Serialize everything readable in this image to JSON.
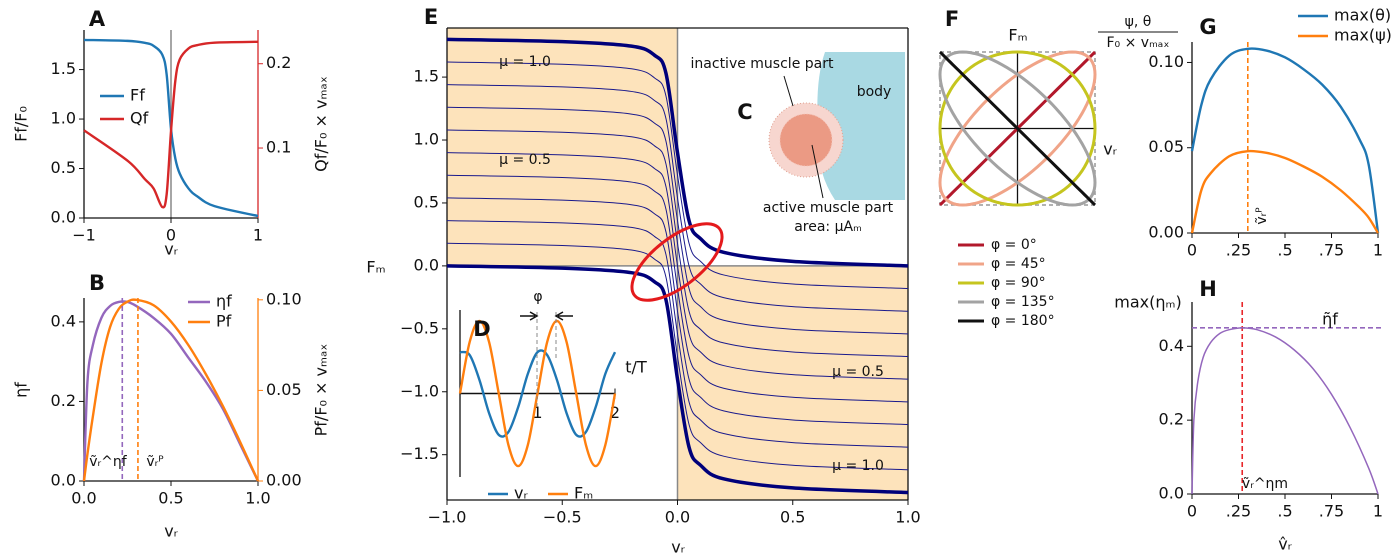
{
  "chart_data": [
    {
      "type": "line",
      "panel": "A",
      "x": [
        -1,
        -0.5,
        -0.3,
        -0.2,
        -0.1,
        -0.05,
        0,
        0.05,
        0.1,
        0.2,
        0.3,
        0.5,
        1
      ],
      "xlim": [
        -1,
        1
      ],
      "xticks": [
        {
          "value": -1,
          "label": "−1"
        },
        0,
        1
      ],
      "ylim": [
        0,
        1.9
      ],
      "yticks": [
        {
          "value": 0,
          "label": "0.0"
        },
        {
          "value": 0.5,
          "label": "0.5"
        },
        {
          "value": 1,
          "label": "1.0"
        },
        {
          "value": 1.5,
          "label": "1.5"
        }
      ],
      "y2lim": [
        0.017,
        0.24
      ],
      "y2ticks": [
        0.1,
        0.2
      ],
      "y2color": "#d62728",
      "xlabel": "vᵣ",
      "ylabel": "Ff/F₀",
      "y2label": "Qf/F₀ × vₘₐₓ",
      "zerolines": [
        "x"
      ],
      "series": [
        {
          "name": "Ff",
          "color": "#1f77b4",
          "values": [
            1.8,
            1.79,
            1.77,
            1.74,
            1.65,
            1.45,
            0.9,
            0.6,
            0.45,
            0.3,
            0.22,
            0.12,
            0.02
          ]
        },
        {
          "name": "Qf",
          "color": "#d62728",
          "axis": "y2",
          "values": [
            0.121,
            0.085,
            0.063,
            0.052,
            0.03,
            0.045,
            0.12,
            0.18,
            0.205,
            0.218,
            0.222,
            0.225,
            0.226
          ]
        }
      ]
    },
    {
      "type": "line",
      "panel": "B",
      "x": [
        0,
        0.02,
        0.05,
        0.1,
        0.15,
        0.2,
        0.25,
        0.3,
        0.4,
        0.5,
        0.6,
        0.7,
        0.8,
        0.9,
        1
      ],
      "xlim": [
        0,
        1
      ],
      "xticks": [
        {
          "value": 0,
          "label": "0.0"
        },
        {
          "value": 0.5,
          "label": "0.5"
        },
        {
          "value": 1,
          "label": "1.0"
        }
      ],
      "ylim": [
        0,
        0.46
      ],
      "yticks": [
        {
          "value": 0,
          "label": "0.0"
        },
        0.2,
        0.4
      ],
      "y2lim": [
        0,
        0.101
      ],
      "y2ticks": [
        {
          "value": 0,
          "label": "0.00"
        },
        0.05,
        {
          "value": 0.1,
          "label": "0.10"
        }
      ],
      "y2color": "#ff7f0e",
      "xlabel": "vᵣ",
      "ylabel": "ηf",
      "y2label": "Pf/F₀ × vₘₐₓ",
      "series": [
        {
          "name": "ηf",
          "color": "#9467bd",
          "values": [
            0,
            0.25,
            0.34,
            0.41,
            0.44,
            0.45,
            0.45,
            0.44,
            0.41,
            0.37,
            0.31,
            0.25,
            0.18,
            0.09,
            0
          ]
        },
        {
          "name": "Pf",
          "color": "#ff7f0e",
          "axis": "y2",
          "values": [
            0,
            0.015,
            0.035,
            0.065,
            0.085,
            0.095,
            0.099,
            0.1,
            0.097,
            0.088,
            0.075,
            0.059,
            0.041,
            0.021,
            0
          ]
        }
      ],
      "vlines": [
        {
          "x": 0.22,
          "color": "#9467bd",
          "label": "ṽᵣ^ηf"
        },
        {
          "x": 0.31,
          "color": "#ff7f0e",
          "label": "ṽᵣᴾ"
        }
      ]
    },
    {
      "type": "line",
      "panel": "E",
      "x": [
        -1,
        -0.5,
        -0.2,
        -0.1,
        -0.05,
        0,
        0.05,
        0.1,
        0.2,
        0.5,
        1
      ],
      "xlim": [
        -1,
        1
      ],
      "xticks": [
        {
          "value": -1,
          "label": "−1.0"
        },
        {
          "value": -0.5,
          "label": "−0.5"
        },
        {
          "value": 0,
          "label": "0.0"
        },
        0.5,
        {
          "value": 1,
          "label": "1.0"
        }
      ],
      "ylim": [
        -1.86,
        1.89
      ],
      "yticks": [
        {
          "value": -1.5,
          "label": "−1.5"
        },
        {
          "value": -1,
          "label": "−1.0"
        },
        {
          "value": -0.5,
          "label": "−0.5"
        },
        {
          "value": 0,
          "label": "0.0"
        },
        0.5,
        {
          "value": 1,
          "label": "1.0"
        },
        1.5
      ],
      "xlabel": "vᵣ",
      "ylabel": "Fₘ",
      "zerolines": [
        "x",
        "y"
      ],
      "shade": "#fde3bb",
      "annotations": [
        "μ = 1.0",
        "μ = 0.5",
        "μ = 0.5",
        "μ = 1.0"
      ],
      "series": [
        {
          "color": "#00007a",
          "linewidth": 3.5,
          "values": [
            1.8,
            1.782,
            1.746,
            1.674,
            1.53,
            0.9,
            0.36,
            0.216,
            0.108,
            0.036,
            0
          ]
        },
        {
          "color": "#00007a",
          "linewidth": 3.5,
          "values": [
            0,
            -0.018,
            -0.054,
            -0.126,
            -0.27,
            -0.9,
            -1.44,
            -1.584,
            -1.692,
            -1.764,
            -1.8
          ]
        },
        {
          "color": "#1a1a8c",
          "linewidth": 1,
          "values": [
            1.62,
            1.602,
            1.566,
            1.494,
            1.35,
            0.72,
            0.18,
            0.036,
            -0.072,
            -0.144,
            -0.18
          ]
        },
        {
          "color": "#1a1a8c",
          "linewidth": 1,
          "values": [
            1.44,
            1.422,
            1.386,
            1.314,
            1.17,
            0.54,
            0,
            -0.144,
            -0.252,
            -0.324,
            -0.36
          ]
        },
        {
          "color": "#1a1a8c",
          "linewidth": 1,
          "values": [
            1.26,
            1.242,
            1.206,
            1.134,
            0.99,
            0.36,
            -0.18,
            -0.324,
            -0.432,
            -0.504,
            -0.54
          ]
        },
        {
          "color": "#1a1a8c",
          "linewidth": 1,
          "values": [
            1.08,
            1.062,
            1.026,
            0.954,
            0.81,
            0.18,
            -0.36,
            -0.504,
            -0.612,
            -0.684,
            -0.72
          ]
        },
        {
          "color": "#1a1a8c",
          "linewidth": 1,
          "values": [
            0.9,
            0.882,
            0.846,
            0.774,
            0.63,
            0,
            -0.54,
            -0.684,
            -0.792,
            -0.864,
            -0.9
          ]
        },
        {
          "color": "#1a1a8c",
          "linewidth": 1,
          "values": [
            0.72,
            0.702,
            0.666,
            0.594,
            0.45,
            -0.18,
            -0.72,
            -0.864,
            -0.972,
            -1.044,
            -1.08
          ]
        },
        {
          "color": "#1a1a8c",
          "linewidth": 1,
          "values": [
            0.54,
            0.522,
            0.486,
            0.414,
            0.27,
            -0.36,
            -0.9,
            -1.044,
            -1.152,
            -1.224,
            -1.26
          ]
        },
        {
          "color": "#1a1a8c",
          "linewidth": 1,
          "values": [
            0.36,
            0.342,
            0.306,
            0.234,
            0.09,
            -0.54,
            -1.08,
            -1.224,
            -1.332,
            -1.404,
            -1.44
          ]
        },
        {
          "color": "#1a1a8c",
          "linewidth": 1,
          "values": [
            0.18,
            0.162,
            0.126,
            0.054,
            -0.09,
            -0.72,
            -1.26,
            -1.404,
            -1.512,
            -1.584,
            -1.62
          ]
        }
      ]
    },
    {
      "type": "line",
      "panel": "D",
      "x": [
        0,
        0.125,
        0.25,
        0.375,
        0.5,
        0.625,
        0.75,
        0.875,
        1,
        1.125,
        1.25,
        1.375,
        1.5,
        1.625,
        1.75,
        1.875,
        2
      ],
      "xlim": [
        0,
        2
      ],
      "xticks": [
        1,
        2
      ],
      "ylim": [
        -1.15,
        1.15
      ],
      "xlabel": "t/T",
      "zerolines": [
        "y"
      ],
      "annotations": [
        "φ"
      ],
      "series": [
        {
          "name": "vᵣ",
          "color": "#1f77b4",
          "values": [
            0.57,
            0.53,
            0.19,
            -0.27,
            -0.57,
            -0.53,
            -0.19,
            0.27,
            0.57,
            0.53,
            0.19,
            -0.27,
            -0.57,
            -0.53,
            -0.19,
            0.27,
            0.57
          ]
        },
        {
          "name": "Fₘ",
          "color": "#ff7f0e",
          "values": [
            0,
            0.71,
            1,
            0.71,
            0,
            -0.71,
            -1,
            -0.71,
            0,
            0.71,
            1,
            0.71,
            0,
            -0.71,
            -1,
            -0.71,
            0
          ]
        }
      ]
    },
    {
      "type": "diagram",
      "panel": "C",
      "texts": [
        "inactive muscle part",
        "body",
        "active muscle part",
        "area: μAₘ"
      ]
    },
    {
      "type": "lissajous",
      "panel": "F",
      "xlabel": "vᵣ",
      "ylabel": "Fₘ",
      "series": [
        {
          "name": "φ = 0°",
          "phase": 0,
          "color": "#b2182b"
        },
        {
          "name": "φ = 45°",
          "phase": 45,
          "color": "#f0a488"
        },
        {
          "name": "φ = 90°",
          "phase": 90,
          "color": "#c5c51f"
        },
        {
          "name": "φ = 135°",
          "phase": 135,
          "color": "#a3a3a3"
        },
        {
          "name": "φ = 180°",
          "phase": 180,
          "color": "#111111"
        }
      ]
    },
    {
      "type": "line",
      "panel": "G",
      "x": [
        0,
        0.05,
        0.1,
        0.2,
        0.3,
        0.4,
        0.5,
        0.6,
        0.7,
        0.8,
        0.9,
        0.95,
        1
      ],
      "xlim": [
        0,
        1
      ],
      "xticks": [
        0,
        {
          "value": 0.25,
          "label": ".25"
        },
        {
          "value": 0.5,
          "label": ".5"
        },
        {
          "value": 0.75,
          "label": ".75"
        },
        1
      ],
      "ylim": [
        0,
        0.112
      ],
      "yticks": [
        {
          "value": 0,
          "label": "0.00"
        },
        0.05,
        {
          "value": 0.1,
          "label": "0.10"
        }
      ],
      "ylabel": [
        "ψ, θ",
        "F₀ × vₘₐₓ"
      ],
      "series": [
        {
          "name": "max(θ)",
          "color": "#1f77b4",
          "values": [
            0.048,
            0.075,
            0.09,
            0.104,
            0.108,
            0.107,
            0.103,
            0.096,
            0.087,
            0.074,
            0.055,
            0.04,
            0
          ]
        },
        {
          "name": "max(ψ)",
          "color": "#ff7f0e",
          "values": [
            0,
            0.025,
            0.035,
            0.045,
            0.048,
            0.047,
            0.044,
            0.039,
            0.033,
            0.025,
            0.015,
            0.009,
            0
          ]
        }
      ],
      "vlines": [
        {
          "x": 0.3,
          "color": "#ff7f0e",
          "label": "ṽᵣᴾ"
        }
      ]
    },
    {
      "type": "line",
      "panel": "H",
      "x": [
        0,
        0.01,
        0.03,
        0.06,
        0.1,
        0.15,
        0.2,
        0.27,
        0.35,
        0.45,
        0.55,
        0.65,
        0.75,
        0.85,
        0.95,
        1
      ],
      "xlim": [
        0,
        1
      ],
      "xticks": [
        0,
        {
          "value": 0.25,
          "label": ".25"
        },
        {
          "value": 0.5,
          "label": ".5"
        },
        {
          "value": 0.75,
          "label": ".75"
        },
        1
      ],
      "ylim": [
        0,
        0.52
      ],
      "yticks": [
        {
          "value": 0,
          "label": "0.0"
        },
        0.2,
        0.4
      ],
      "xlabel": "v̂ᵣ",
      "ylabel": "max(ηₘ)",
      "series": [
        {
          "color": "#9467bd",
          "linewidth": 1.5,
          "values": [
            0,
            0.2,
            0.3,
            0.37,
            0.41,
            0.435,
            0.445,
            0.45,
            0.445,
            0.425,
            0.39,
            0.34,
            0.27,
            0.18,
            0.07,
            0
          ]
        }
      ],
      "vlines": [
        {
          "x": 0.27,
          "color": "#e8262a",
          "label": "ṽᵣ^ηm"
        }
      ],
      "hlines": [
        {
          "y": 0.45,
          "color": "#9467bd",
          "label": "η̃f"
        }
      ]
    }
  ]
}
